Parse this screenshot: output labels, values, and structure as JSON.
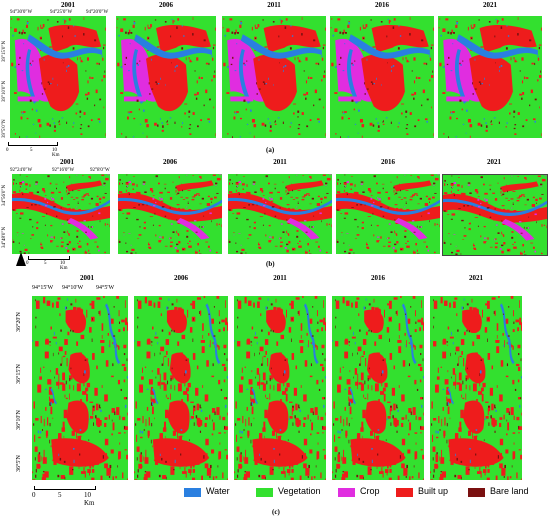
{
  "colors": {
    "water": "#2a7fe0",
    "vegetation": "#33e02f",
    "crop": "#e02de0",
    "built_up": "#ee1c1c",
    "bare_land": "#7a1010"
  },
  "panels": [
    {
      "id": "a",
      "label": "(a)",
      "years": [
        "2001",
        "2006",
        "2011",
        "2016",
        "2021"
      ],
      "lon_labels": [
        "94°30'0\"W",
        "94°25'0\"W",
        "94°20'0\"W"
      ],
      "lat_labels": [
        "39°15'0\"N",
        "39°10'0\"N",
        "39°5'0\"N"
      ],
      "scale": {
        "ticks": [
          "0",
          "5",
          "10 Km"
        ]
      }
    },
    {
      "id": "b",
      "label": "(b)",
      "years": [
        "2001",
        "2006",
        "2011",
        "2016",
        "2021"
      ],
      "lon_labels": [
        "92°24'0\"W",
        "92°16'0\"W",
        "92°8'0\"W"
      ],
      "lat_labels": [
        "34°56'0\"N",
        "34°48'0\"N"
      ],
      "scale": {
        "ticks": [
          "0",
          "5",
          "10 Km"
        ]
      }
    },
    {
      "id": "c",
      "label": "(c)",
      "years": [
        "2001",
        "2006",
        "2011",
        "2016",
        "2021"
      ],
      "lon_labels": [
        "94°15'W",
        "94°10'W",
        "94°5'W"
      ],
      "lat_labels": [
        "36°20'N",
        "36°15'N",
        "36°10'N",
        "36°5'N"
      ],
      "scale": {
        "ticks": [
          "0",
          "5",
          "10 Km"
        ]
      }
    }
  ],
  "legend": [
    {
      "key": "water",
      "label": "Water"
    },
    {
      "key": "vegetation",
      "label": "Vegetation"
    },
    {
      "key": "crop",
      "label": "Crop"
    },
    {
      "key": "built_up",
      "label": "Built up"
    },
    {
      "key": "bare_land",
      "label": "Bare land"
    }
  ]
}
